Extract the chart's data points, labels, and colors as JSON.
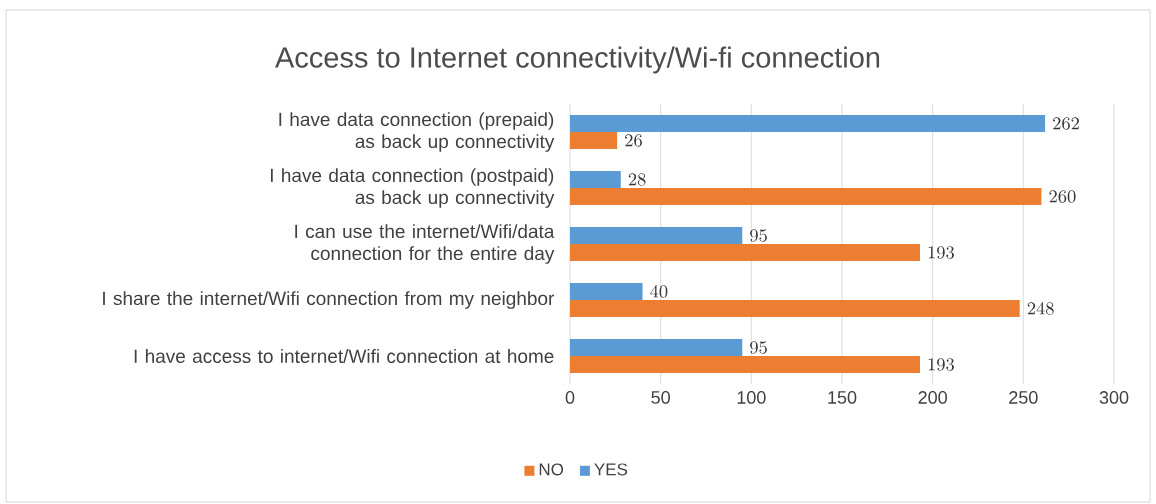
{
  "chart_data": {
    "type": "bar",
    "orientation": "horizontal",
    "title": "Access to Internet connectivity/Wi-fi connection",
    "categories": [
      "I have data connection (prepaid) as back up connectivity",
      "I have data connection (postpaid) as back up connectivity",
      "I can use the internet/Wifi/data connection for the entire day",
      "I share the internet/Wifi connection from my neighbor",
      "I have access to internet/Wifi connection at home"
    ],
    "series": [
      {
        "name": "NO",
        "color": "#ed7d31",
        "values": [
          26,
          260,
          193,
          248,
          193
        ]
      },
      {
        "name": "YES",
        "color": "#5b9bd5",
        "values": [
          262,
          28,
          95,
          40,
          95
        ]
      }
    ],
    "xlim": [
      0,
      300
    ],
    "xticks": [
      0,
      50,
      100,
      150,
      200,
      250,
      300
    ],
    "grid": "x",
    "legend": "bottom",
    "data_labels": true
  }
}
